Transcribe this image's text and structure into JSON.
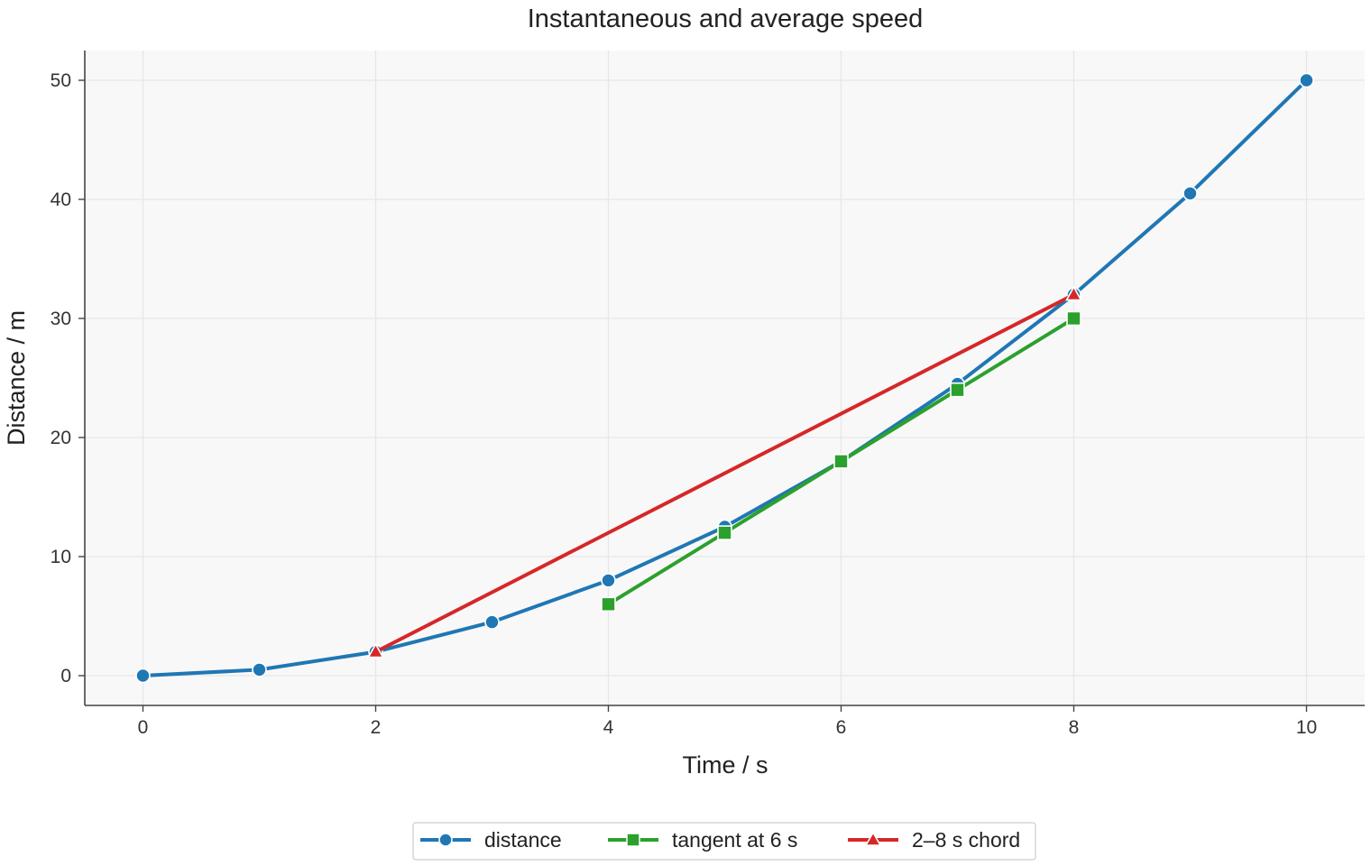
{
  "chart_data": {
    "type": "line",
    "title": "Instantaneous and average speed",
    "xlabel": "Time / s",
    "ylabel": "Distance / m",
    "xlim": [
      -0.5,
      10.5
    ],
    "ylim": [
      -2.5,
      52.5
    ],
    "xticks": [
      0,
      2,
      4,
      6,
      8,
      10
    ],
    "yticks": [
      0,
      10,
      20,
      30,
      40,
      50
    ],
    "grid": true,
    "legend_position": "bottom",
    "series": [
      {
        "name": "distance",
        "color": "#1f77b4",
        "marker": "circle",
        "x": [
          0,
          1,
          2,
          3,
          4,
          5,
          6,
          7,
          8,
          9,
          10
        ],
        "y": [
          0,
          0.5,
          2,
          4.5,
          8,
          12.5,
          18,
          24.5,
          32,
          40.5,
          50
        ]
      },
      {
        "name": "tangent at 6 s",
        "color": "#2ca02c",
        "marker": "square",
        "x": [
          4,
          5,
          6,
          7,
          8
        ],
        "y": [
          6,
          12,
          18,
          24,
          30
        ]
      },
      {
        "name": "2–8 s chord",
        "color": "#d62728",
        "marker": "triangle",
        "x": [
          2,
          8
        ],
        "y": [
          2,
          32
        ]
      }
    ]
  }
}
